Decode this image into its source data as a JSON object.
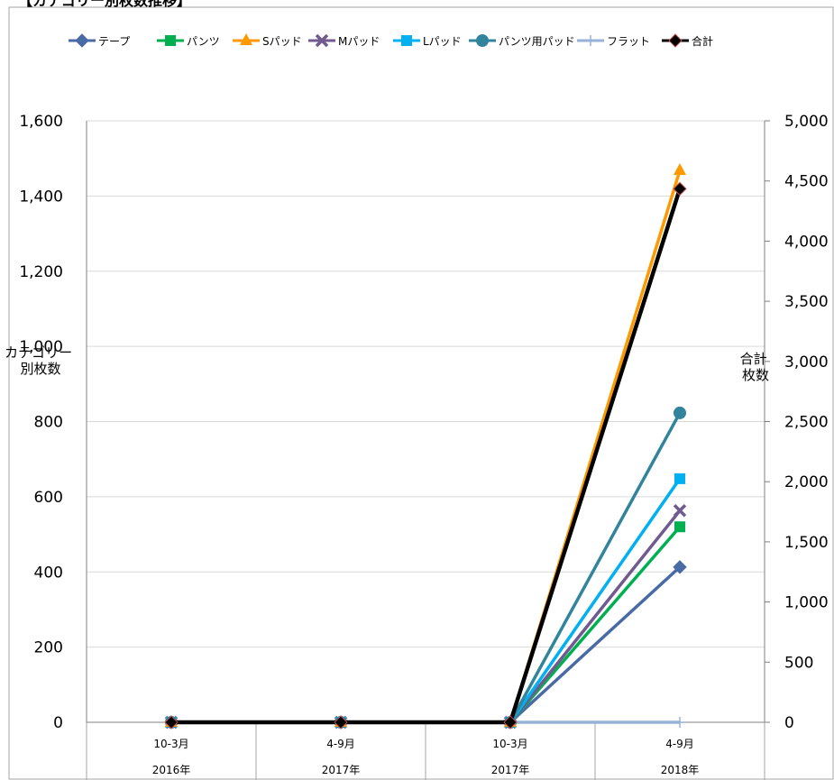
{
  "chart_data": {
    "type": "line",
    "title": "【カテゴリー別枚数推移】",
    "categories": [
      "10-3月",
      "4-9月",
      "10-3月",
      "4-9月"
    ],
    "category_groups": [
      "2016年",
      "2017年",
      "2017年",
      "2018年"
    ],
    "y_left": {
      "label": "カテゴリー別枚数",
      "ylim": [
        0,
        1600
      ],
      "ticks": [
        "0",
        "200",
        "400",
        "600",
        "800",
        "1,000",
        "1,200",
        "1,400",
        "1,600"
      ]
    },
    "y_right": {
      "label": "合計枚数",
      "ylim": [
        0,
        5000
      ],
      "ticks": [
        "0",
        "500",
        "1,000",
        "1,500",
        "2,000",
        "2,500",
        "3,000",
        "3,500",
        "4,000",
        "4,500",
        "5,000"
      ]
    },
    "grid": "horizontal",
    "legend_position": "top",
    "series": [
      {
        "name": "テープ",
        "values": [
          0,
          0,
          0,
          413
        ],
        "axis": "left",
        "color": "#4a6aa5",
        "marker": "diamond"
      },
      {
        "name": "パンツ",
        "values": [
          0,
          0,
          0,
          520
        ],
        "axis": "left",
        "color": "#00b050",
        "marker": "square"
      },
      {
        "name": "Sパッド",
        "values": [
          0,
          0,
          0,
          1468
        ],
        "axis": "left",
        "color": "#ff9900",
        "marker": "triangle"
      },
      {
        "name": "Mパッド",
        "values": [
          0,
          0,
          0,
          563
        ],
        "axis": "left",
        "color": "#705a90",
        "marker": "x"
      },
      {
        "name": "Lパッド",
        "values": [
          0,
          0,
          0,
          648
        ],
        "axis": "left",
        "color": "#00b0f0",
        "marker": "square"
      },
      {
        "name": "パンツ用パッド",
        "values": [
          0,
          0,
          0,
          823
        ],
        "axis": "left",
        "color": "#31849b",
        "marker": "circle"
      },
      {
        "name": "フラット",
        "values": [
          0,
          0,
          0,
          0
        ],
        "axis": "left",
        "color": "#95b3d7",
        "marker": "plus"
      },
      {
        "name": "合計",
        "values": [
          0,
          0,
          0,
          4435
        ],
        "axis": "right",
        "color": "#000000",
        "marker": "diamond"
      }
    ]
  }
}
